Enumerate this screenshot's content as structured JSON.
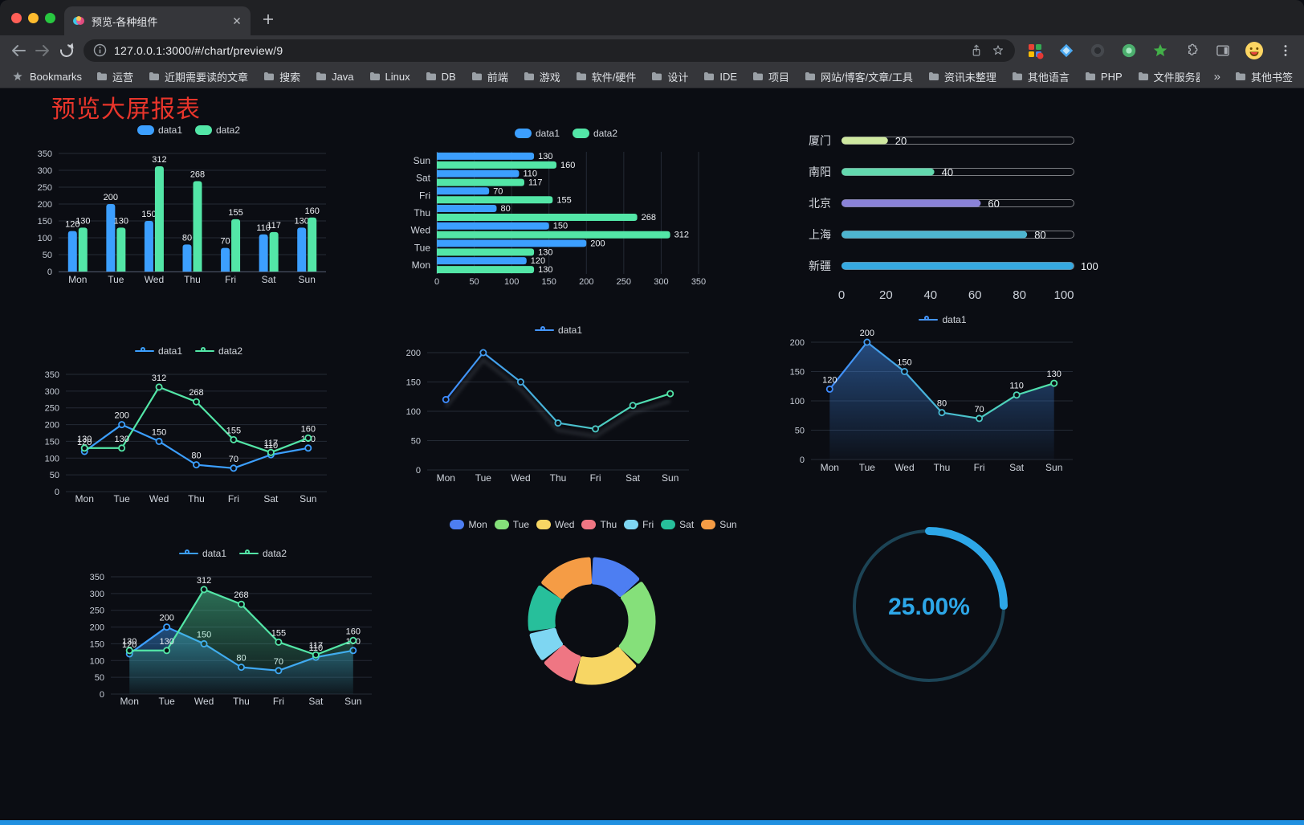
{
  "browser": {
    "tab": {
      "title": "预览-各种组件"
    },
    "url": "127.0.0.1:3000/#/chart/preview/9",
    "bookmarks_label": "Bookmarks",
    "bookmarks": [
      "运营",
      "近期需要读的文章",
      "搜索",
      "Java",
      "Linux",
      "DB",
      "前端",
      "游戏",
      "软件/硬件",
      "设计",
      "IDE",
      "项目",
      "网站/博客/文章/工具",
      "资讯未整理",
      "其他语言",
      "PHP",
      "文件服务器"
    ],
    "bookmarks_overflow": "»",
    "other_bookmarks": "其他书签"
  },
  "page": {
    "title": "预览大屏报表",
    "title_color": "#e8352b",
    "background": "#0b0d13",
    "bottom_bar_color": "#2090e0"
  },
  "chart_data": [
    {
      "id": "grouped-bar",
      "type": "bar",
      "categories": [
        "Mon",
        "Tue",
        "Wed",
        "Thu",
        "Fri",
        "Sat",
        "Sun"
      ],
      "series": [
        {
          "name": "data1",
          "color": "#3c9fff",
          "values": [
            120,
            200,
            150,
            80,
            70,
            110,
            130
          ]
        },
        {
          "name": "data2",
          "color": "#53e6a7",
          "values": [
            130,
            130,
            312,
            268,
            155,
            117,
            160
          ]
        }
      ],
      "ylim": [
        0,
        350
      ],
      "yticks": [
        0,
        50,
        100,
        150,
        200,
        250,
        300,
        350
      ],
      "value_labels": true,
      "legend_position": "top"
    },
    {
      "id": "horizontal-bar",
      "type": "bar-horizontal",
      "categories": [
        "Mon",
        "Tue",
        "Wed",
        "Thu",
        "Fri",
        "Sat",
        "Sun"
      ],
      "series": [
        {
          "name": "data1",
          "color": "#3c9fff",
          "values": [
            120,
            200,
            150,
            80,
            70,
            110,
            130
          ]
        },
        {
          "name": "data2",
          "color": "#53e6a7",
          "values": [
            130,
            130,
            312,
            268,
            155,
            117,
            160
          ]
        }
      ],
      "xlim": [
        0,
        350
      ],
      "xticks": [
        0,
        50,
        100,
        150,
        200,
        250,
        300,
        350
      ],
      "value_labels": true,
      "legend_position": "top"
    },
    {
      "id": "city-progress",
      "type": "progress",
      "max": 100,
      "items": [
        {
          "label": "厦门",
          "value": 20,
          "color": "#cfe8a0"
        },
        {
          "label": "南阳",
          "value": 40,
          "color": "#63d8ae"
        },
        {
          "label": "北京",
          "value": 60,
          "color": "#8a82d8"
        },
        {
          "label": "上海",
          "value": 80,
          "color": "#4db4cf"
        },
        {
          "label": "新疆",
          "value": 100,
          "color": "#36a9e1"
        }
      ],
      "xticks": [
        0,
        20,
        40,
        60,
        80,
        100
      ]
    },
    {
      "id": "line-two-series",
      "type": "line",
      "categories": [
        "Mon",
        "Tue",
        "Wed",
        "Thu",
        "Fri",
        "Sat",
        "Sun"
      ],
      "series": [
        {
          "name": "data1",
          "color": "#3c9fff",
          "values": [
            120,
            200,
            150,
            80,
            70,
            110,
            130
          ]
        },
        {
          "name": "data2",
          "color": "#53e6a7",
          "values": [
            130,
            130,
            312,
            268,
            155,
            117,
            160
          ]
        }
      ],
      "ylim": [
        0,
        350
      ],
      "yticks": [
        0,
        50,
        100,
        150,
        200,
        250,
        300,
        350
      ],
      "value_labels": true,
      "legend_position": "top"
    },
    {
      "id": "line-gradient",
      "type": "line",
      "categories": [
        "Mon",
        "Tue",
        "Wed",
        "Thu",
        "Fri",
        "Sat",
        "Sun"
      ],
      "series": [
        {
          "name": "data1",
          "color": "#4596ff",
          "gradient": [
            "#3f8cff",
            "#52e6a7"
          ],
          "shadow": true,
          "values": [
            120,
            200,
            150,
            80,
            70,
            110,
            130
          ]
        }
      ],
      "ylim": [
        0,
        200
      ],
      "yticks": [
        0,
        50,
        100,
        150,
        200
      ],
      "value_labels": false,
      "legend_position": "top"
    },
    {
      "id": "area-single",
      "type": "line",
      "categories": [
        "Mon",
        "Tue",
        "Wed",
        "Thu",
        "Fri",
        "Sat",
        "Sun"
      ],
      "series": [
        {
          "name": "data1",
          "color": "#4596ff",
          "gradient": [
            "#3f8cff",
            "#52e6a7"
          ],
          "area": true,
          "values": [
            120,
            200,
            150,
            80,
            70,
            110,
            130
          ]
        }
      ],
      "ylim": [
        0,
        200
      ],
      "yticks": [
        0,
        50,
        100,
        150,
        200
      ],
      "value_labels": true,
      "legend_position": "top"
    },
    {
      "id": "area-two-series",
      "type": "line",
      "categories": [
        "Mon",
        "Tue",
        "Wed",
        "Thu",
        "Fri",
        "Sat",
        "Sun"
      ],
      "series": [
        {
          "name": "data1",
          "color": "#3c9fff",
          "area": true,
          "values": [
            120,
            200,
            150,
            80,
            70,
            110,
            130
          ]
        },
        {
          "name": "data2",
          "color": "#53e6a7",
          "area": true,
          "values": [
            130,
            130,
            312,
            268,
            155,
            117,
            160
          ]
        }
      ],
      "ylim": [
        0,
        350
      ],
      "yticks": [
        0,
        50,
        100,
        150,
        200,
        250,
        300,
        350
      ],
      "value_labels": true,
      "legend_position": "top"
    },
    {
      "id": "donut",
      "type": "pie",
      "slices": [
        {
          "label": "Mon",
          "value": 120,
          "color": "#4d7ef2"
        },
        {
          "label": "Tue",
          "value": 200,
          "color": "#85e07a"
        },
        {
          "label": "Wed",
          "value": 150,
          "color": "#f7d664"
        },
        {
          "label": "Thu",
          "value": 80,
          "color": "#ef7683"
        },
        {
          "label": "Fri",
          "value": 70,
          "color": "#7ed6f2"
        },
        {
          "label": "Sat",
          "value": 110,
          "color": "#27bf9b"
        },
        {
          "label": "Sun",
          "value": 130,
          "color": "#f59c45"
        }
      ],
      "legend_position": "top"
    },
    {
      "id": "gauge",
      "type": "gauge",
      "percent": 25,
      "label": "25.00%",
      "color": "#2da7e8",
      "track_color": "#1c4456"
    }
  ]
}
